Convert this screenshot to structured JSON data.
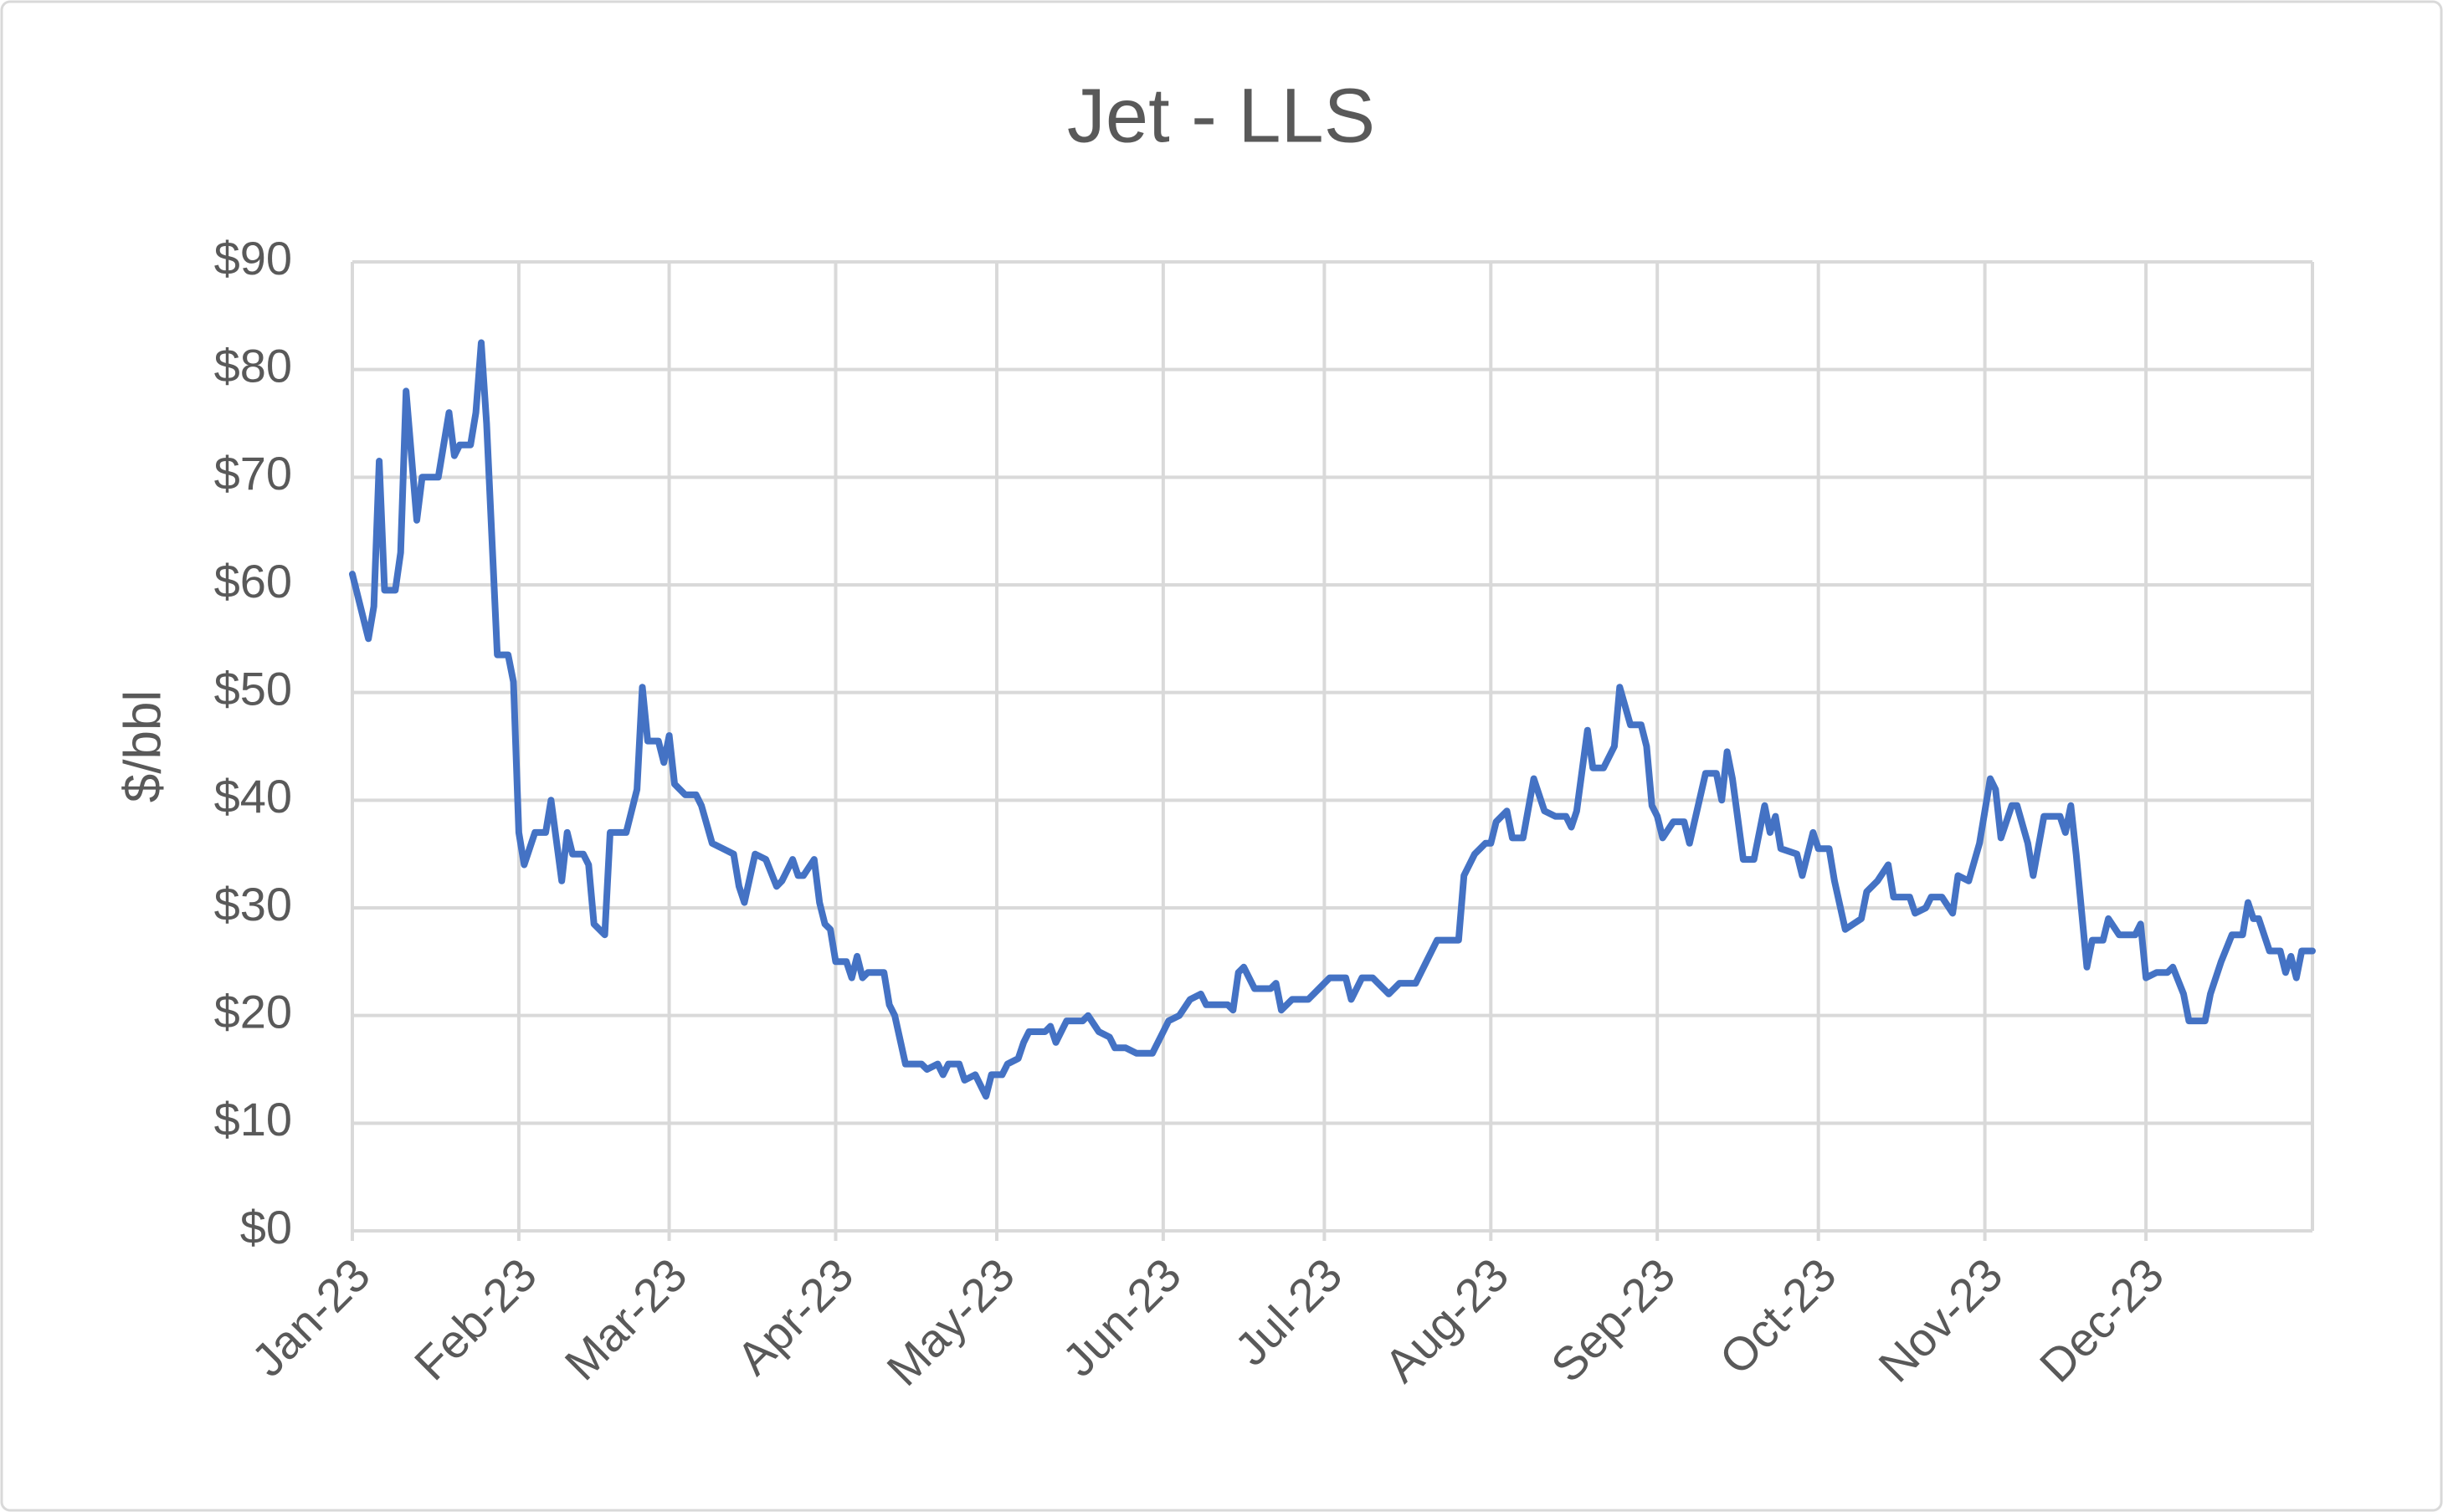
{
  "chart_data": {
    "type": "line",
    "title": "Jet - LLS",
    "y_label": "$/bbl",
    "color": "#4472c4",
    "grid": true,
    "xlim": [
      0,
      365
    ],
    "ylim": [
      0,
      90
    ],
    "xticks": [
      {
        "value": 0,
        "label": "Jan-23"
      },
      {
        "value": 31,
        "label": "Feb-23"
      },
      {
        "value": 59,
        "label": "Mar-23"
      },
      {
        "value": 90,
        "label": "Apr-23"
      },
      {
        "value": 120,
        "label": "May-23"
      },
      {
        "value": 151,
        "label": "Jun-23"
      },
      {
        "value": 181,
        "label": "Jul-23"
      },
      {
        "value": 212,
        "label": "Aug-23"
      },
      {
        "value": 243,
        "label": "Sep-23"
      },
      {
        "value": 273,
        "label": "Oct-23"
      },
      {
        "value": 304,
        "label": "Nov-23"
      },
      {
        "value": 334,
        "label": "Dec-23"
      }
    ],
    "yticks": [
      {
        "value": 0,
        "label": "$0"
      },
      {
        "value": 10,
        "label": "$10"
      },
      {
        "value": 20,
        "label": "$20"
      },
      {
        "value": 30,
        "label": "$30"
      },
      {
        "value": 40,
        "label": "$40"
      },
      {
        "value": 50,
        "label": "$50"
      },
      {
        "value": 60,
        "label": "$60"
      },
      {
        "value": 70,
        "label": "$70"
      },
      {
        "value": 80,
        "label": "$80"
      },
      {
        "value": 90,
        "label": "$90"
      }
    ],
    "x": [
      0,
      3,
      4,
      5,
      6,
      8,
      9,
      10,
      12,
      13,
      16,
      18,
      19,
      20,
      22,
      23,
      24,
      25,
      27,
      29,
      30,
      31,
      32,
      34,
      36,
      37,
      39,
      40,
      41,
      43,
      44,
      45,
      47,
      48,
      51,
      53,
      54,
      55,
      57,
      58,
      59,
      60,
      62,
      64,
      65,
      67,
      69,
      71,
      72,
      73,
      75,
      77,
      79,
      80,
      82,
      83,
      84,
      86,
      87,
      88,
      89,
      90,
      92,
      93,
      94,
      95,
      96,
      99,
      100,
      101,
      103,
      105,
      106,
      107,
      109,
      110,
      111,
      113,
      114,
      116,
      118,
      119,
      121,
      122,
      124,
      125,
      126,
      129,
      130,
      131,
      133,
      136,
      137,
      139,
      141,
      142,
      144,
      146,
      149,
      151,
      152,
      154,
      156,
      158,
      159,
      163,
      164,
      165,
      166,
      168,
      171,
      172,
      173,
      175,
      178,
      180,
      182,
      185,
      186,
      188,
      190,
      193,
      195,
      198,
      200,
      201,
      202,
      204,
      206,
      207,
      209,
      211,
      212,
      213,
      215,
      216,
      218,
      220,
      222,
      224,
      226,
      227,
      228,
      230,
      231,
      233,
      235,
      236,
      238,
      240,
      241,
      242,
      243,
      244,
      246,
      248,
      249,
      252,
      254,
      255,
      256,
      257,
      259,
      261,
      263,
      264,
      265,
      266,
      269,
      270,
      272,
      273,
      275,
      276,
      278,
      281,
      282,
      284,
      286,
      287,
      290,
      291,
      293,
      294,
      296,
      298,
      299,
      301,
      303,
      305,
      306,
      307,
      309,
      310,
      312,
      313,
      315,
      318,
      319,
      320,
      321,
      323,
      324,
      326,
      327,
      329,
      332,
      333,
      334,
      336,
      338,
      339,
      341,
      342,
      345,
      346,
      348,
      350,
      352,
      353,
      354,
      355,
      357,
      359,
      360,
      361,
      362,
      363,
      365
    ],
    "values": [
      61,
      55,
      58,
      71.5,
      59.5,
      59.5,
      63,
      78,
      66,
      70,
      70,
      76,
      72,
      73,
      73,
      76,
      82.5,
      75,
      53.5,
      53.5,
      51,
      37,
      34,
      37,
      37,
      40,
      32.5,
      37,
      35,
      35,
      34,
      28.5,
      27.5,
      37,
      37,
      41,
      50.5,
      45.5,
      45.5,
      43.5,
      46,
      41.5,
      40.5,
      40.5,
      39.5,
      36,
      35.5,
      35,
      32,
      30.5,
      35,
      34.5,
      32,
      32.5,
      34.5,
      33,
      33,
      34.5,
      30.5,
      28.5,
      28,
      25,
      25,
      23.5,
      25.5,
      23.5,
      24,
      24,
      21,
      20,
      15.5,
      15.5,
      15.5,
      15,
      15.5,
      14.5,
      15.5,
      15.5,
      14,
      14.5,
      12.5,
      14.5,
      14.5,
      15.5,
      16,
      17.5,
      18.5,
      18.5,
      19,
      17.5,
      19.5,
      19.5,
      20,
      18.5,
      18,
      17,
      17,
      16.5,
      16.5,
      18.5,
      19.5,
      20,
      21.5,
      22,
      21,
      21,
      20.5,
      24,
      24.5,
      22.5,
      22.5,
      23,
      20.5,
      21.5,
      21.5,
      22.5,
      23.5,
      23.5,
      21.5,
      23.5,
      23.5,
      22,
      23,
      23,
      25,
      26,
      27,
      27,
      27,
      33,
      35,
      36,
      36,
      38,
      39,
      36.5,
      36.5,
      42,
      39,
      38.5,
      38.5,
      37.5,
      39,
      46.5,
      43,
      43,
      45,
      50.5,
      47,
      47,
      45,
      39.5,
      38.5,
      36.5,
      38,
      38,
      36,
      42.5,
      42.5,
      40,
      44.5,
      42,
      34.5,
      34.5,
      39.5,
      37,
      38.5,
      35.5,
      35,
      33,
      37,
      35.5,
      35.5,
      32.5,
      28,
      29,
      31.5,
      32.5,
      34,
      31,
      31,
      29.5,
      30,
      31,
      31,
      29.5,
      33,
      32.5,
      36,
      42,
      41,
      36.5,
      39.5,
      39.5,
      36,
      33,
      38.5,
      38.5,
      37,
      39.5,
      35,
      24.5,
      27,
      27,
      29,
      27.5,
      27.5,
      28.5,
      23.5,
      24,
      24,
      24.5,
      22,
      19.5,
      19.5,
      22,
      25,
      27.5,
      27.5,
      30.5,
      29,
      29,
      26,
      26,
      24,
      25.5,
      23.5,
      26,
      26
    ]
  }
}
